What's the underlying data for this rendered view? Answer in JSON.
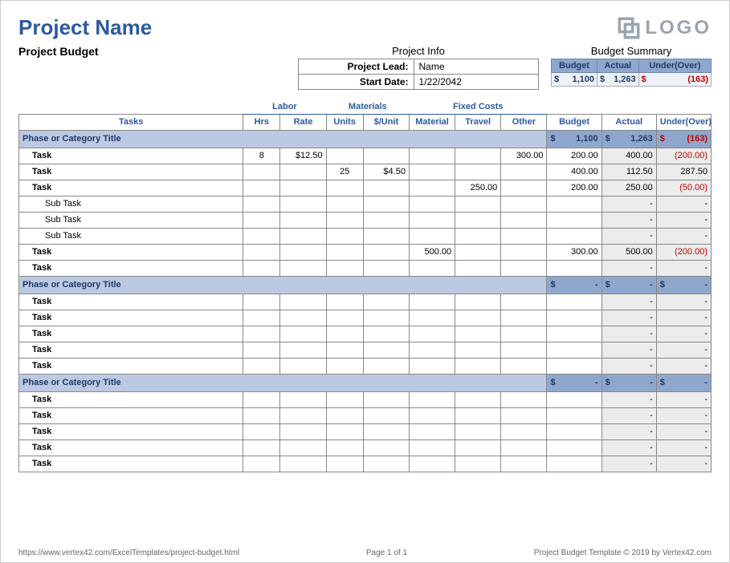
{
  "colors": {
    "accent": "#2a5aa0",
    "phase_bg": "#bcc9e2",
    "summary_bg": "#8fa7cc",
    "calc_bg": "#ececec",
    "negative": "#c00000",
    "logo": "#9aa4b0",
    "border": "#888888"
  },
  "header": {
    "title": "Project Name",
    "logo_text": "LOGO"
  },
  "subtitle": "Project Budget",
  "project_info": {
    "heading": "Project Info",
    "lead_label": "Project Lead:",
    "lead_value": "Name",
    "start_label": "Start Date:",
    "start_value": "1/22/2042"
  },
  "budget_summary": {
    "heading": "Budget Summary",
    "cols": [
      "Budget",
      "Actual",
      "Under(Over)"
    ],
    "budget": "1,100",
    "actual": "1,263",
    "under_over": "(163)"
  },
  "column_groups": {
    "labor": "Labor",
    "materials": "Materials",
    "fixed": "Fixed Costs"
  },
  "columns": {
    "tasks": "Tasks",
    "hrs": "Hrs",
    "rate": "Rate",
    "units": "Units",
    "unit_price": "$/Unit",
    "material": "Material",
    "travel": "Travel",
    "other": "Other",
    "budget": "Budget",
    "actual": "Actual",
    "under_over": "Under(Over)"
  },
  "phases": [
    {
      "title": "Phase or Category Title",
      "budget": "1,100",
      "actual": "1,263",
      "under_over": "(163)",
      "neg": true,
      "rows": [
        {
          "label": "Task",
          "indent": 1,
          "hrs": "8",
          "rate": "$12.50",
          "units": "",
          "unit_price": "",
          "material": "",
          "travel": "",
          "other": "300.00",
          "budget": "200.00",
          "actual": "400.00",
          "under_over": "(200.00)",
          "neg": true
        },
        {
          "label": "Task",
          "indent": 1,
          "hrs": "",
          "rate": "",
          "units": "25",
          "unit_price": "$4.50",
          "material": "",
          "travel": "",
          "other": "",
          "budget": "400.00",
          "actual": "112.50",
          "under_over": "287.50",
          "neg": false
        },
        {
          "label": "Task",
          "indent": 1,
          "hrs": "",
          "rate": "",
          "units": "",
          "unit_price": "",
          "material": "",
          "travel": "250.00",
          "other": "",
          "budget": "200.00",
          "actual": "250.00",
          "under_over": "(50.00)",
          "neg": true
        },
        {
          "label": "Sub Task",
          "indent": 2,
          "hrs": "",
          "rate": "",
          "units": "",
          "unit_price": "",
          "material": "",
          "travel": "",
          "other": "",
          "budget": "",
          "actual": "-",
          "under_over": "-",
          "neg": false
        },
        {
          "label": "Sub Task",
          "indent": 2,
          "hrs": "",
          "rate": "",
          "units": "",
          "unit_price": "",
          "material": "",
          "travel": "",
          "other": "",
          "budget": "",
          "actual": "-",
          "under_over": "-",
          "neg": false
        },
        {
          "label": "Sub Task",
          "indent": 2,
          "hrs": "",
          "rate": "",
          "units": "",
          "unit_price": "",
          "material": "",
          "travel": "",
          "other": "",
          "budget": "",
          "actual": "-",
          "under_over": "-",
          "neg": false
        },
        {
          "label": "Task",
          "indent": 1,
          "hrs": "",
          "rate": "",
          "units": "",
          "unit_price": "",
          "material": "500.00",
          "travel": "",
          "other": "",
          "budget": "300.00",
          "actual": "500.00",
          "under_over": "(200.00)",
          "neg": true
        },
        {
          "label": "Task",
          "indent": 1,
          "hrs": "",
          "rate": "",
          "units": "",
          "unit_price": "",
          "material": "",
          "travel": "",
          "other": "",
          "budget": "",
          "actual": "-",
          "under_over": "-",
          "neg": false
        }
      ]
    },
    {
      "title": "Phase or Category Title",
      "budget": "-",
      "actual": "-",
      "under_over": "-",
      "neg": false,
      "rows": [
        {
          "label": "Task",
          "indent": 1,
          "hrs": "",
          "rate": "",
          "units": "",
          "unit_price": "",
          "material": "",
          "travel": "",
          "other": "",
          "budget": "",
          "actual": "-",
          "under_over": "-",
          "neg": false
        },
        {
          "label": "Task",
          "indent": 1,
          "hrs": "",
          "rate": "",
          "units": "",
          "unit_price": "",
          "material": "",
          "travel": "",
          "other": "",
          "budget": "",
          "actual": "-",
          "under_over": "-",
          "neg": false
        },
        {
          "label": "Task",
          "indent": 1,
          "hrs": "",
          "rate": "",
          "units": "",
          "unit_price": "",
          "material": "",
          "travel": "",
          "other": "",
          "budget": "",
          "actual": "-",
          "under_over": "-",
          "neg": false
        },
        {
          "label": "Task",
          "indent": 1,
          "hrs": "",
          "rate": "",
          "units": "",
          "unit_price": "",
          "material": "",
          "travel": "",
          "other": "",
          "budget": "",
          "actual": "-",
          "under_over": "-",
          "neg": false
        },
        {
          "label": "Task",
          "indent": 1,
          "hrs": "",
          "rate": "",
          "units": "",
          "unit_price": "",
          "material": "",
          "travel": "",
          "other": "",
          "budget": "",
          "actual": "-",
          "under_over": "-",
          "neg": false
        }
      ]
    },
    {
      "title": "Phase or Category Title",
      "budget": "-",
      "actual": "-",
      "under_over": "-",
      "neg": false,
      "rows": [
        {
          "label": "Task",
          "indent": 1,
          "hrs": "",
          "rate": "",
          "units": "",
          "unit_price": "",
          "material": "",
          "travel": "",
          "other": "",
          "budget": "",
          "actual": "-",
          "under_over": "-",
          "neg": false
        },
        {
          "label": "Task",
          "indent": 1,
          "hrs": "",
          "rate": "",
          "units": "",
          "unit_price": "",
          "material": "",
          "travel": "",
          "other": "",
          "budget": "",
          "actual": "-",
          "under_over": "-",
          "neg": false
        },
        {
          "label": "Task",
          "indent": 1,
          "hrs": "",
          "rate": "",
          "units": "",
          "unit_price": "",
          "material": "",
          "travel": "",
          "other": "",
          "budget": "",
          "actual": "-",
          "under_over": "-",
          "neg": false
        },
        {
          "label": "Task",
          "indent": 1,
          "hrs": "",
          "rate": "",
          "units": "",
          "unit_price": "",
          "material": "",
          "travel": "",
          "other": "",
          "budget": "",
          "actual": "-",
          "under_over": "-",
          "neg": false
        },
        {
          "label": "Task",
          "indent": 1,
          "hrs": "",
          "rate": "",
          "units": "",
          "unit_price": "",
          "material": "",
          "travel": "",
          "other": "",
          "budget": "",
          "actual": "-",
          "under_over": "-",
          "neg": false
        }
      ]
    }
  ],
  "footer": {
    "left": "https://www.vertex42.com/ExcelTemplates/project-budget.html",
    "center": "Page 1 of 1",
    "right": "Project Budget Template © 2019 by Vertex42.com"
  }
}
